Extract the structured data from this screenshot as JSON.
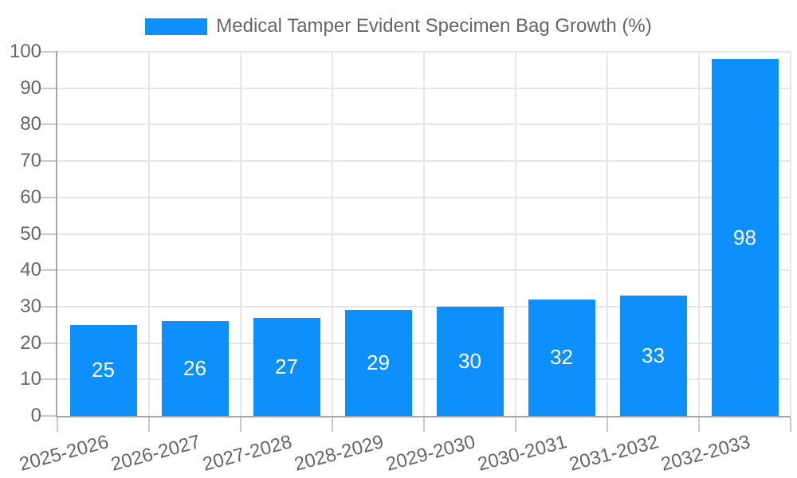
{
  "chart_data": {
    "type": "bar",
    "legend_label": "Medical Tamper Evident Specimen Bag Growth (%)",
    "legend_position": "top-center",
    "categories": [
      "2025-2026",
      "2026-2027",
      "2027-2028",
      "2028-2029",
      "2029-2030",
      "2030-2031",
      "2031-2032",
      "2032-2033"
    ],
    "values": [
      25,
      26,
      27,
      29,
      30,
      32,
      33,
      98
    ],
    "yticks": [
      0,
      10,
      20,
      30,
      40,
      50,
      60,
      70,
      80,
      90,
      100
    ],
    "ylim": [
      0,
      100
    ],
    "xlabel": "",
    "ylabel": "",
    "grid": true,
    "colors": {
      "bar": "#0d90fb",
      "bar_label": "#ffffff",
      "text": "#666666",
      "grid": "#e6e6e6",
      "axis": "#a6a6a6",
      "tick": "#c9c9c9",
      "background": "#ffffff"
    }
  }
}
